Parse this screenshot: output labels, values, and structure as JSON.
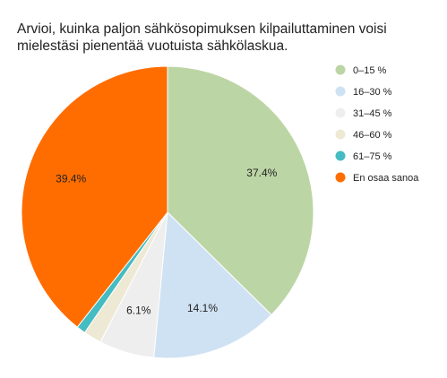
{
  "chart_data": {
    "type": "pie",
    "title_lines": [
      "Arvioi, kuinka paljon sähkösopimuksen kilpailuttaminen voisi",
      "mielestäsi pienentää vuotuista sähkölaskua."
    ],
    "legend_position": "right",
    "slices": [
      {
        "label": "0–15 %",
        "value": 37.4,
        "value_label": "37.4%",
        "color": "#bcd5a5"
      },
      {
        "label": "16–30 %",
        "value": 14.1,
        "value_label": "14.1%",
        "color": "#cfe2f3"
      },
      {
        "label": "31–45 %",
        "value": 6.1,
        "value_label": "6.1%",
        "color": "#eeeeee"
      },
      {
        "label": "46–60 %",
        "value": 2.0,
        "value_label": "",
        "color": "#eee9d4"
      },
      {
        "label": "61–75 %",
        "value": 1.0,
        "value_label": "",
        "color": "#45bcc1"
      },
      {
        "label": "En osaa sanoa",
        "value": 39.4,
        "value_label": "39.4%",
        "color": "#ff6d01"
      }
    ]
  }
}
